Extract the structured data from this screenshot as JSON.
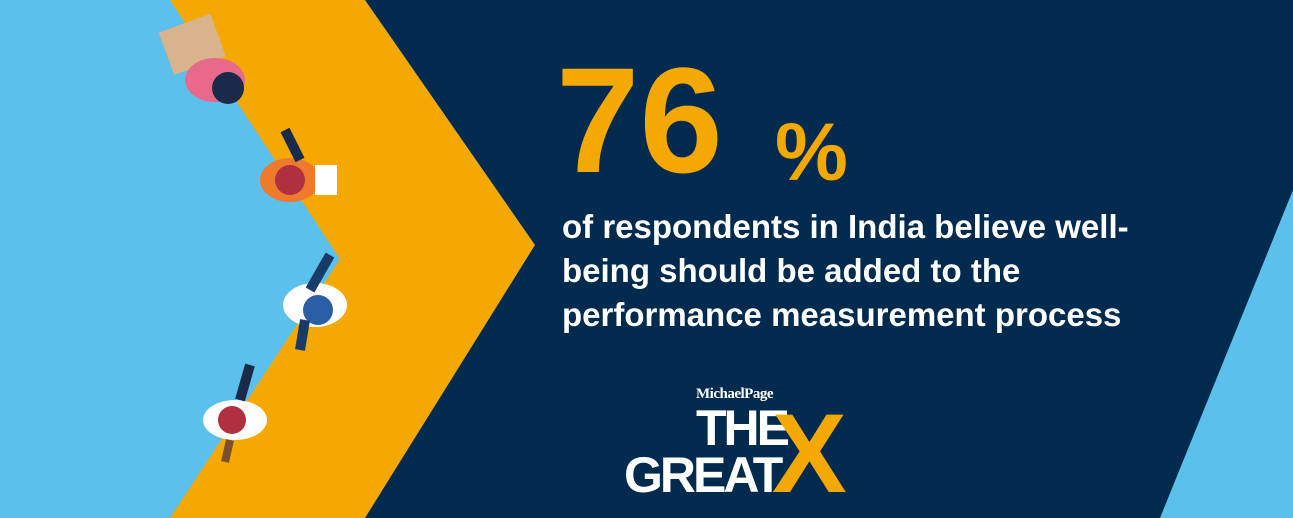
{
  "stat": {
    "number": "76",
    "unit": "%"
  },
  "description": [
    "of respondents in India believe well-",
    "being should be added to the",
    "performance measurement process"
  ],
  "logo": {
    "brand": "MichaelPage",
    "line1": "THE",
    "line2": "GREAT",
    "mark": "X"
  }
}
